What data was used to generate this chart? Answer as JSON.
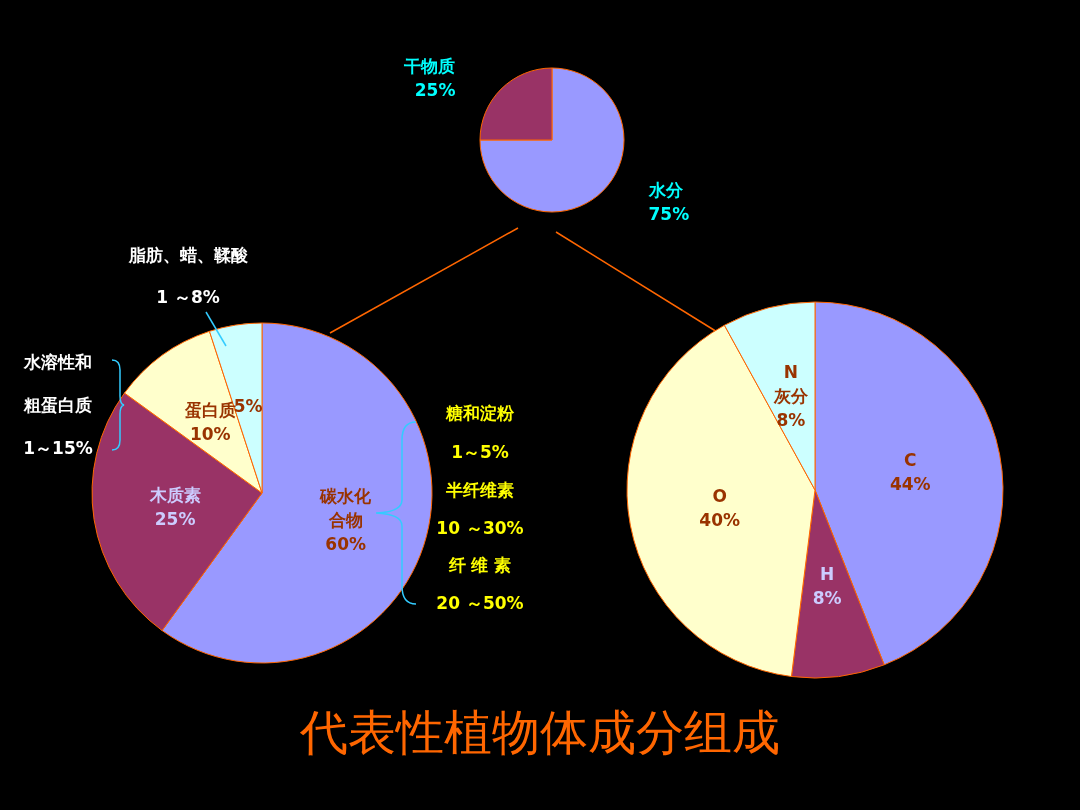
{
  "chart_data": [
    {
      "type": "pie",
      "title": "代表性植物体成分组成",
      "categories": [
        "水分",
        "干物质"
      ],
      "values": [
        75,
        25
      ],
      "colors": [
        "#9999ff",
        "#993366"
      ],
      "value_labels": [
        "75%",
        "25%"
      ]
    },
    {
      "type": "pie",
      "categories": [
        "碳水化合物",
        "木质素",
        "蛋白质",
        null
      ],
      "values": [
        60,
        25,
        10,
        5
      ],
      "colors": [
        "#9999ff",
        "#993366",
        "#ffffcc",
        "#ccffff"
      ],
      "value_labels": [
        "60%",
        "25%",
        "10%",
        "5%"
      ],
      "annotations": [
        "脂肪、蜡、鞣酸",
        "1 ～8%",
        "水溶性和",
        "粗蛋白质",
        "1～15%",
        "糖和淀粉",
        "1～5%",
        "半纤维素",
        "10 ～30%",
        "纤 维 素",
        "20 ～50%"
      ]
    },
    {
      "type": "pie",
      "categories": [
        "C",
        "H",
        "O",
        "N\n灰分"
      ],
      "values": [
        44,
        8,
        40,
        8
      ],
      "colors": [
        "#9999ff",
        "#993366",
        "#ffffcc",
        "#ccffff"
      ],
      "value_labels": [
        "44%",
        "8%",
        "40%",
        "8%"
      ]
    }
  ]
}
